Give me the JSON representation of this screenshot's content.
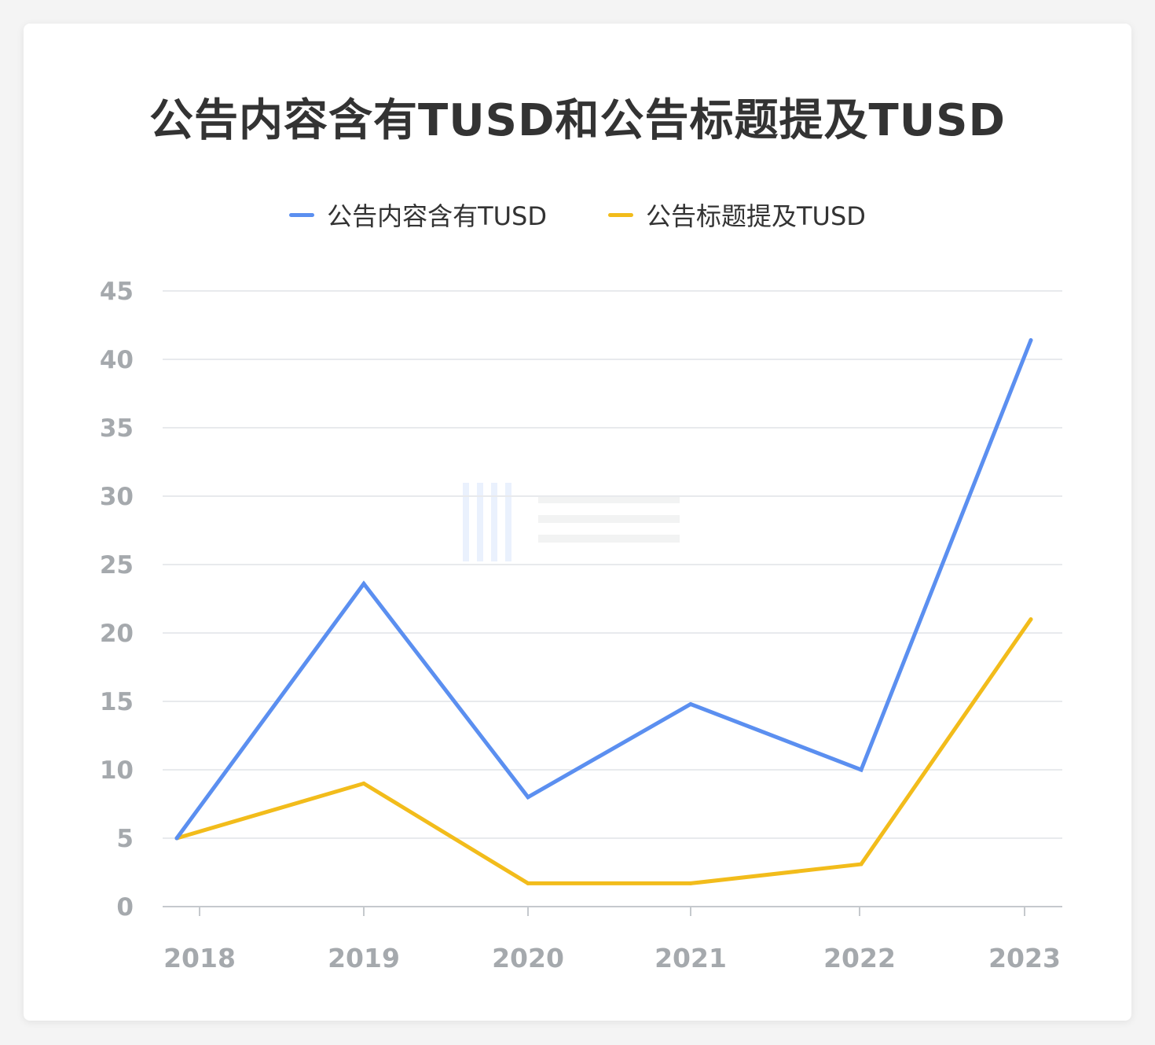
{
  "chart_data": {
    "type": "line",
    "title": "公告内容含有TUSD和公告标题提及TUSD",
    "categories": [
      "2018",
      "2019",
      "2020",
      "2021",
      "2022",
      "2023"
    ],
    "series": [
      {
        "name": "公告内容含有TUSD",
        "color": "#5b8ff0",
        "values": [
          5,
          23.6,
          8,
          14.8,
          10,
          41.4
        ]
      },
      {
        "name": "公告标题提及TUSD",
        "color": "#f2bc1b",
        "values": [
          5,
          9,
          1.7,
          1.7,
          3.1,
          21
        ]
      }
    ],
    "ylim": [
      0,
      45
    ],
    "yticks": [
      0,
      5,
      10,
      15,
      20,
      25,
      30,
      35,
      40,
      45
    ],
    "grid": true,
    "legend_position": "top-center",
    "xlabel": "",
    "ylabel": ""
  }
}
